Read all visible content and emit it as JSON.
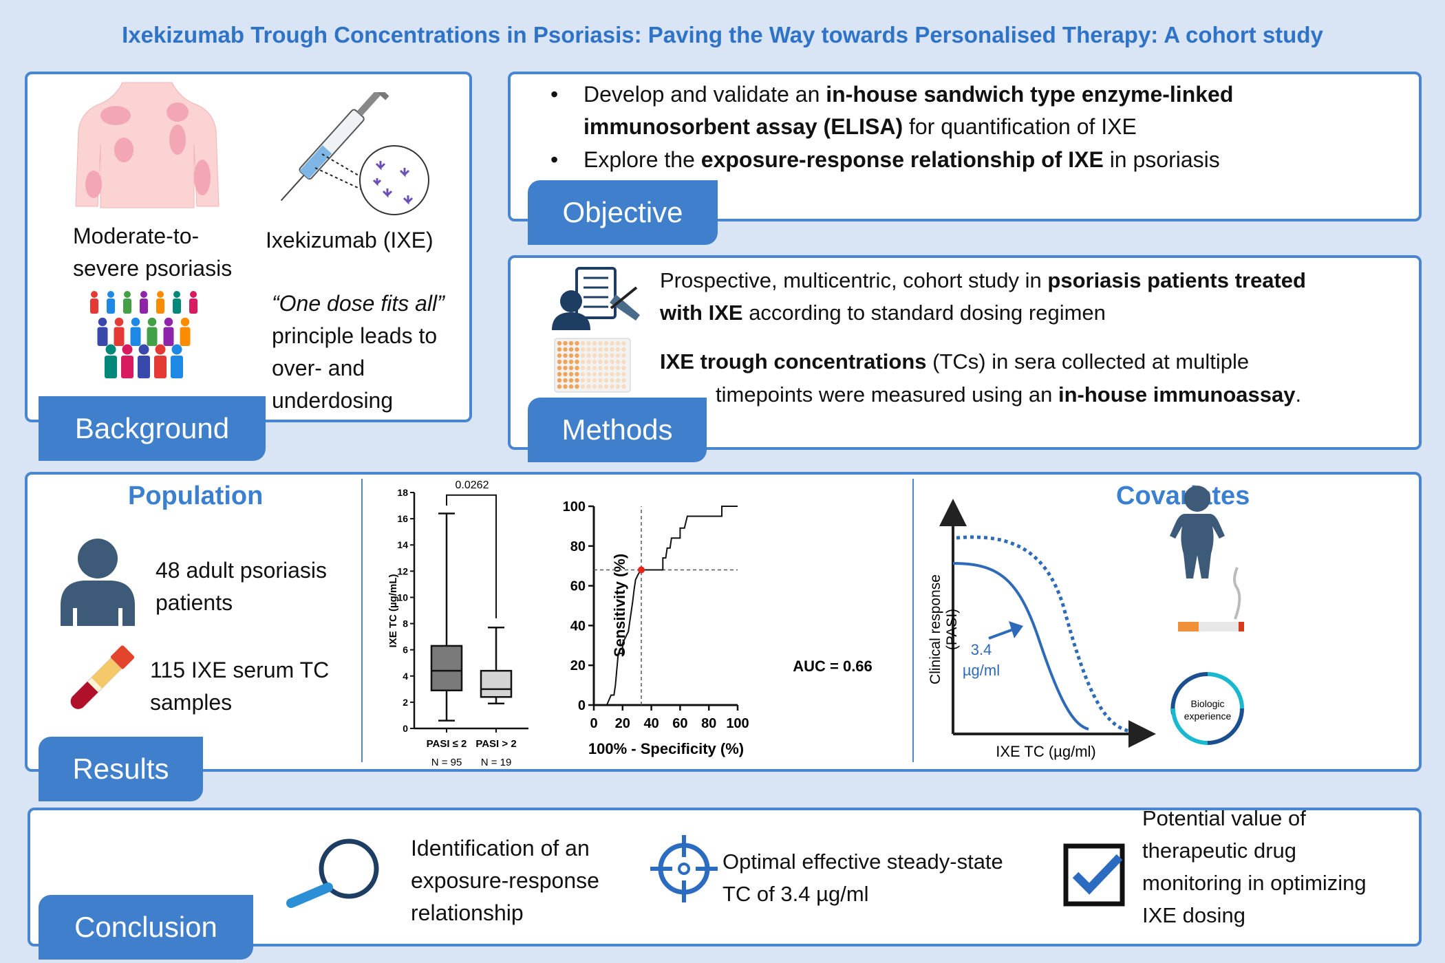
{
  "title": "Ixekizumab Trough Concentrations in Psoriasis: Paving the Way towards Personalised Therapy: A cohort study",
  "colors": {
    "accent": "#3f7fcc",
    "border": "#4a86d0",
    "background": "#d9e5f5",
    "heading": "#3b7fd0",
    "cutoff_point": "#e8231c"
  },
  "background": {
    "tab": "Background",
    "disease_label_1": "Moderate-to-",
    "disease_label_2": "severe psoriasis",
    "drug_label": "Ixekizumab (IXE)",
    "quote": "“One dose fits all”",
    "quote_lines": [
      "principle leads to",
      "over- and",
      "underdosing"
    ],
    "icons": [
      "psoriasis-body-icon",
      "syringe-icon",
      "antibody-icon",
      "crowd-icon"
    ]
  },
  "objective": {
    "tab": "Objective",
    "bullet1_a": "Develop and validate an ",
    "bullet1_b": "in-house sandwich type enzyme-linked",
    "bullet1_c": "immunosorbent assay (ELISA)",
    "bullet1_d": " for quantification of IXE",
    "bullet2_a": "Explore the ",
    "bullet2_b": "exposure-response relationship of IXE",
    "bullet2_c": " in psoriasis"
  },
  "methods": {
    "tab": "Methods",
    "p1_a": "Prospective, multicentric, cohort study in ",
    "p1_b": "psoriasis patients treated",
    "p1_c": "with IXE",
    "p1_d": " according to standard dosing regimen",
    "p2_a": "IXE trough concentrations",
    "p2_b": " (TCs) in sera collected at multiple",
    "p2_c": "timepoints were measured using an ",
    "p2_d": "in-house immunoassay",
    "p2_e": "."
  },
  "results": {
    "tab": "Results",
    "population": {
      "heading": "Population",
      "patients_1": "48 adult psoriasis",
      "patients_2": "patients",
      "samples_1": "115 IXE serum TC",
      "samples_2": "samples"
    },
    "covariates": {
      "heading": "Covariates",
      "ylabel_1": "Clinical response",
      "ylabel_2": "(PASI)",
      "xlabel": "IXE TC (µg/ml)",
      "annotation_1": "3.4",
      "annotation_2": "µg/ml",
      "cycle_label_1": "Biologic",
      "cycle_label_2": "experience",
      "icons": [
        "body-weight-icon",
        "cigarette-icon",
        "cycle-arrows-icon"
      ]
    }
  },
  "chart_data": [
    {
      "type": "box",
      "ylabel": "IXE TC (µg/mL)",
      "ylim": [
        0,
        18
      ],
      "yticks": [
        "0",
        "2",
        "4",
        "6",
        "8",
        "10",
        "12",
        "14",
        "16",
        "18"
      ],
      "categories": [
        "PASI ≤ 2",
        "PASI > 2"
      ],
      "n_labels": [
        "N = 95",
        "N = 19"
      ],
      "boxes": [
        {
          "min": 0.6,
          "q1": 2.9,
          "median": 4.4,
          "q3": 6.3,
          "max": 16.4
        },
        {
          "min": 1.9,
          "q1": 2.4,
          "median": 3.0,
          "q3": 4.4,
          "max": 7.7
        }
      ],
      "p_value": "0.0262"
    },
    {
      "type": "line",
      "xlabel": "100% - Specificity (%)",
      "ylabel": "Sensitivity (%)",
      "xlim": [
        0,
        100
      ],
      "ylim": [
        0,
        100
      ],
      "xticks": [
        "0",
        "20",
        "40",
        "60",
        "80",
        "100"
      ],
      "yticks": [
        "0",
        "20",
        "40",
        "60",
        "80",
        "100"
      ],
      "annotation": "AUC = 0.66",
      "cutoff": {
        "x": 33,
        "y": 68
      },
      "x": [
        0,
        9,
        12,
        14,
        15,
        17,
        20,
        20,
        22,
        24,
        26,
        27,
        28,
        29,
        31,
        33,
        48,
        48,
        50,
        51,
        53,
        54,
        60,
        60,
        63,
        65,
        89,
        89,
        100
      ],
      "y": [
        0,
        0,
        5,
        5,
        10,
        26,
        26,
        31,
        34,
        37,
        47,
        52,
        58,
        63,
        66,
        68,
        68,
        74,
        74,
        79,
        79,
        84,
        84,
        89,
        89,
        95,
        95,
        100,
        100
      ]
    }
  ],
  "conclusion": {
    "tab": "Conclusion",
    "item1": [
      "Identification of an",
      "exposure-response",
      "relationship"
    ],
    "item2": [
      "Optimal effective steady-state",
      "TC of 3.4 µg/ml"
    ],
    "item3": [
      "Potential value of",
      "therapeutic drug",
      "monitoring in optimizing",
      "IXE dosing"
    ]
  }
}
